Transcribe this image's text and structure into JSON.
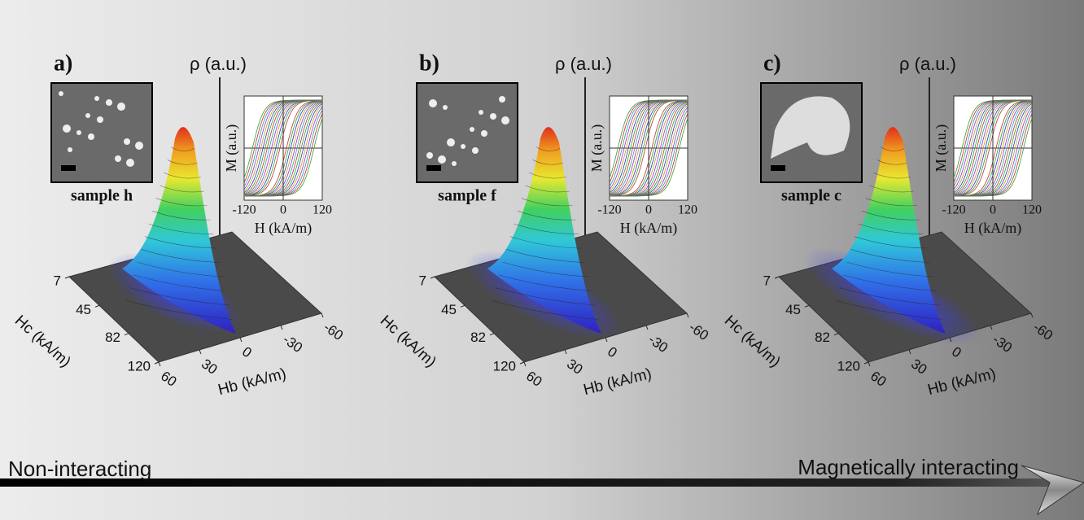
{
  "panels": [
    {
      "label": "a)",
      "sample": "sample h",
      "density_label": "ρ (a.u.)",
      "loop": {
        "x_label": "H (kA/m)",
        "y_label": "M (a.u.)",
        "xlim": [
          -120,
          120
        ],
        "xticks": [
          -120,
          0,
          120
        ]
      },
      "surface": {
        "hc_label": "Hc (kA/m)",
        "hb_label": "Hb (kA/m)",
        "hc_lim": [
          7,
          120
        ],
        "hc_ticks": [
          7,
          45,
          82,
          120
        ],
        "hb_lim": [
          60,
          -60
        ],
        "hb_ticks": [
          60,
          30,
          0,
          -30,
          -60
        ]
      }
    },
    {
      "label": "b)",
      "sample": "sample f",
      "density_label": "ρ (a.u.)",
      "loop": {
        "x_label": "H (kA/m)",
        "y_label": "M (a.u.)",
        "xlim": [
          -120,
          120
        ],
        "xticks": [
          -120,
          0,
          120
        ]
      },
      "surface": {
        "hc_label": "Hc (kA/m)",
        "hb_label": "Hb (kA/m)",
        "hc_lim": [
          7,
          120
        ],
        "hc_ticks": [
          7,
          45,
          82,
          120
        ],
        "hb_lim": [
          60,
          -60
        ],
        "hb_ticks": [
          60,
          30,
          0,
          -30,
          -60
        ]
      }
    },
    {
      "label": "c)",
      "sample": "sample c",
      "density_label": "ρ (a.u.)",
      "loop": {
        "x_label": "H (kA/m)",
        "y_label": "M (a.u.)",
        "xlim": [
          -120,
          120
        ],
        "xticks": [
          -120,
          0,
          120
        ]
      },
      "surface": {
        "hc_label": "Hc (kA/m)",
        "hb_label": "Hb (kA/m)",
        "hc_lim": [
          7,
          120
        ],
        "hc_ticks": [
          7,
          45,
          82,
          120
        ],
        "hb_lim": [
          60,
          -60
        ],
        "hb_ticks": [
          60,
          30,
          0,
          -30,
          -60
        ]
      }
    }
  ],
  "arrow": {
    "left": "Non-interacting",
    "right": "Magnetically interacting"
  }
}
